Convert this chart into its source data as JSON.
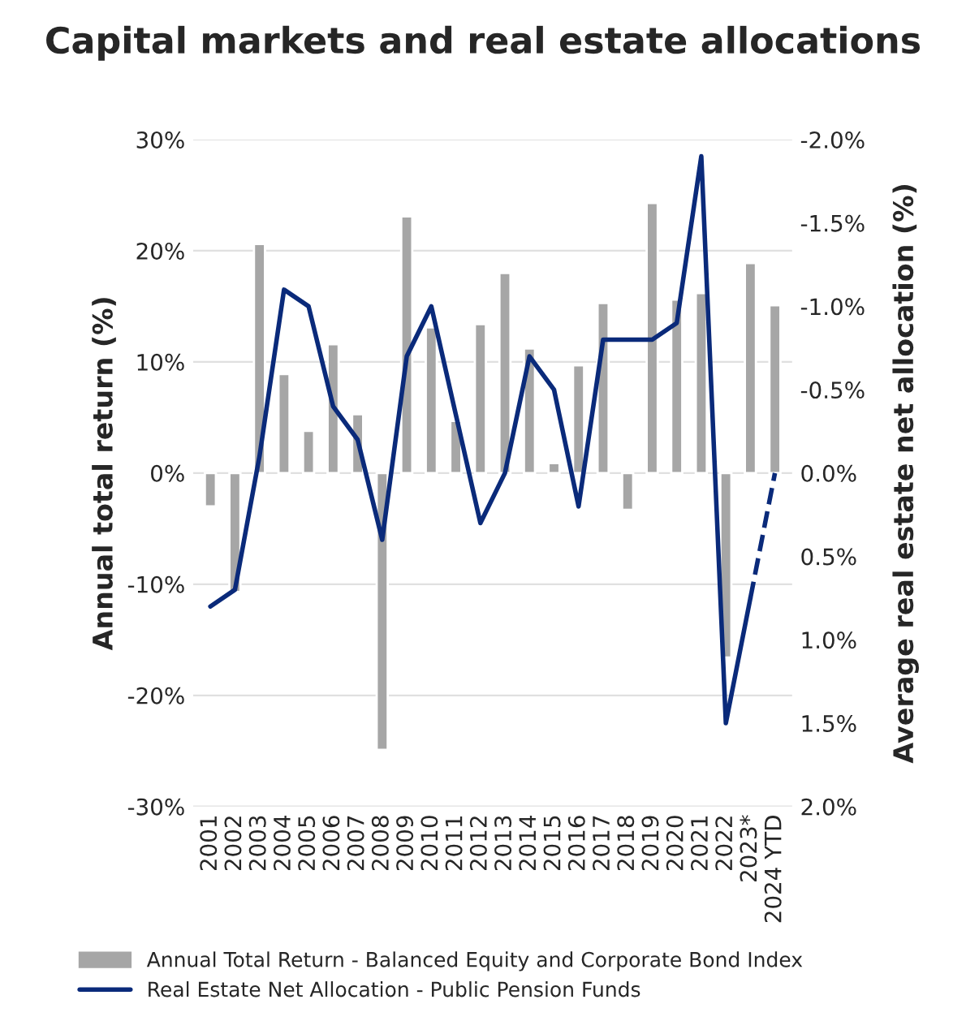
{
  "chart_data": {
    "type": "bar",
    "title": "Capital markets and real estate allocations",
    "categories": [
      "2001",
      "2002",
      "2003",
      "2004",
      "2005",
      "2006",
      "2007",
      "2008",
      "2009",
      "2010",
      "2011",
      "2012",
      "2013",
      "2014",
      "2015",
      "2016",
      "2017",
      "2018",
      "2019",
      "2020",
      "2021",
      "2022",
      "2023*",
      "2024 YTD"
    ],
    "series": [
      {
        "name": "Annual Total Return - Balanced Equity and Corporate Bond Index",
        "color": "#a6a6a6",
        "values": [
          -3.0,
          -10.7,
          20.6,
          8.9,
          3.8,
          11.6,
          5.3,
          -24.9,
          23.1,
          13.1,
          4.7,
          13.4,
          18.0,
          11.2,
          0.9,
          9.7,
          15.3,
          -3.3,
          24.3,
          15.6,
          16.2,
          -16.6,
          18.9,
          15.1
        ]
      },
      {
        "name": "Real Estate Net Allocation - Public Pension Funds",
        "type": "line",
        "axis": "y2",
        "color": "#0a2a7a",
        "line_style": "solid",
        "values": [
          0.8,
          0.7,
          -0.1,
          -1.1,
          -1.0,
          -0.4,
          -0.2,
          0.4,
          -0.7,
          -1.0,
          -0.35,
          0.3,
          0.0,
          -0.7,
          -0.5,
          0.2,
          -0.8,
          -0.8,
          -0.8,
          -0.9,
          -1.9,
          1.5,
          0.75,
          null
        ]
      },
      {
        "type": "line",
        "axis": "y2",
        "color": "#0a2a7a",
        "line_style": "dashed",
        "values": [
          null,
          null,
          null,
          null,
          null,
          null,
          null,
          null,
          null,
          null,
          null,
          null,
          null,
          null,
          null,
          null,
          null,
          null,
          null,
          null,
          null,
          null,
          0.75,
          0.0
        ]
      }
    ],
    "ylabel": "Annual total return (%)",
    "y2label": "Average real estate net allocation (%)",
    "ylim": [
      -30,
      30
    ],
    "yticks": [
      {
        "value": -30,
        "label": "-30%"
      },
      {
        "value": -20,
        "label": "-20%"
      },
      {
        "value": -10,
        "label": "-10%"
      },
      {
        "value": 0,
        "label": "0%"
      },
      {
        "value": 10,
        "label": "10%"
      },
      {
        "value": 20,
        "label": "20%"
      },
      {
        "value": 30,
        "label": "30%"
      }
    ],
    "y2lim": [
      2.0,
      -2.0
    ],
    "y2ticks": [
      {
        "value": 2.0,
        "label": "2.0%"
      },
      {
        "value": 1.5,
        "label": "1.5%"
      },
      {
        "value": 1.0,
        "label": "1.0%"
      },
      {
        "value": 0.5,
        "label": "0.5%"
      },
      {
        "value": 0.0,
        "label": "0.0%"
      },
      {
        "value": -0.5,
        "label": "-0.5%"
      },
      {
        "value": -1.0,
        "label": "-1.0%"
      },
      {
        "value": -1.5,
        "label": "-1.5%"
      },
      {
        "value": -2.0,
        "label": "-2.0%"
      }
    ],
    "grid": "y",
    "legend": "bottom"
  }
}
